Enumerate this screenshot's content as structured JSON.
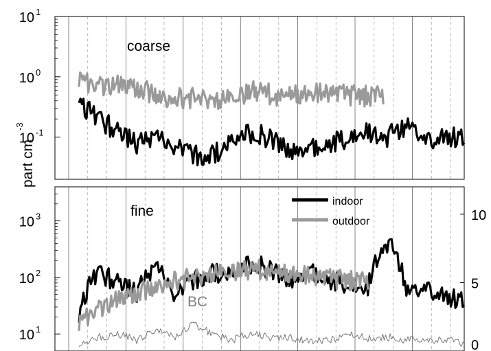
{
  "chart_data": [
    {
      "type": "line",
      "panel": "top",
      "label": "coarse",
      "ylabel": "part cm",
      "ylabel_exponent": "-3",
      "yscale": "log",
      "ylim": [
        0.02,
        10
      ],
      "yticks": [
        {
          "value": 10,
          "base": "10",
          "exp": "1"
        },
        {
          "value": 1,
          "base": "10",
          "exp": "0"
        },
        {
          "value": 0.1,
          "base": "10",
          "exp": "-1"
        }
      ],
      "x_count": 21,
      "series": [
        {
          "name": "outdoor",
          "color": "#9a9a9a",
          "values": [
            0.9,
            0.72,
            0.75,
            0.7,
            0.55,
            0.42,
            0.45,
            0.45,
            0.42,
            0.5,
            0.6,
            0.48,
            0.5,
            0.52,
            0.55,
            0.5,
            0.48,
            0.46
          ]
        },
        {
          "name": "indoor",
          "color": "#000000",
          "values": [
            0.35,
            0.2,
            0.12,
            0.08,
            0.1,
            0.07,
            0.05,
            0.05,
            0.08,
            0.12,
            0.09,
            0.06,
            0.06,
            0.08,
            0.09,
            0.12,
            0.1,
            0.15,
            0.08,
            0.1,
            0.1
          ]
        }
      ]
    },
    {
      "type": "line",
      "panel": "bottom",
      "label": "fine",
      "yscale": "log",
      "ylim": [
        5,
        4000
      ],
      "yticks": [
        {
          "value": 1000,
          "base": "10",
          "exp": "3"
        },
        {
          "value": 100,
          "base": "10",
          "exp": "2"
        },
        {
          "value": 10,
          "base": "10",
          "exp": "1"
        }
      ],
      "y2lim": [
        0,
        12
      ],
      "y2ticks": [
        "10",
        "5",
        "0"
      ],
      "x_count": 21,
      "legend": {
        "placement": "top-right",
        "entries": [
          "indoor",
          "outdoor"
        ]
      },
      "annotation": "BC",
      "series": [
        {
          "name": "indoor",
          "color": "#000000",
          "values": [
            15,
            120,
            80,
            55,
            150,
            45,
            90,
            120,
            100,
            180,
            130,
            90,
            120,
            90,
            70,
            60,
            400,
            50,
            60,
            45,
            40
          ]
        },
        {
          "name": "outdoor",
          "color": "#9a9a9a",
          "values": [
            15,
            30,
            45,
            60,
            80,
            100,
            120,
            130,
            140,
            120,
            110,
            100,
            90,
            80
          ]
        },
        {
          "name": "BC",
          "color": "#777777",
          "axis": "right",
          "values": [
            0.5,
            1.0,
            1.2,
            0.8,
            1.5,
            1.0,
            2.0,
            1.2,
            0.8,
            1.4,
            0.9,
            1.0,
            0.7,
            0.8,
            1.2,
            0.9,
            1.0,
            0.8,
            0.9,
            0.7,
            0.6
          ]
        }
      ]
    }
  ]
}
